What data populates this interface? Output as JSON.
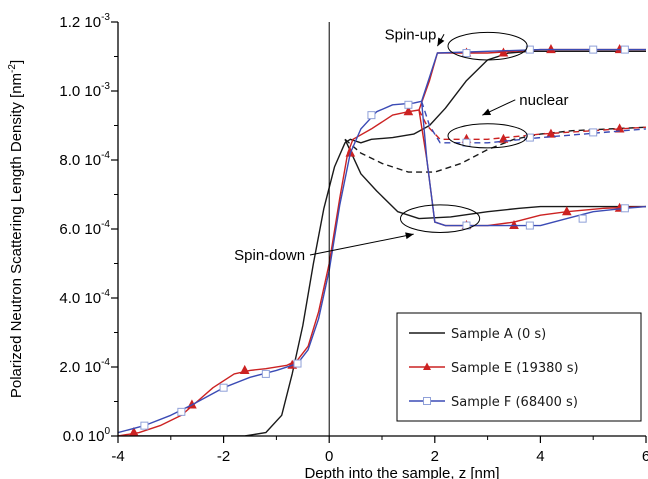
{
  "chart_data": {
    "type": "line",
    "title": "",
    "xlabel": "Depth into the sample, z [nm]",
    "ylabel_main": "Polarized Neutron Scattering Length Density [nm",
    "ylabel_sup": "-2",
    "ylabel_close": "]",
    "xlim": [
      -4,
      6
    ],
    "ylim": [
      0,
      0.0012
    ],
    "grid": false,
    "legend_position": "bottom-right",
    "x_ticks": [
      -4,
      -2,
      0,
      2,
      4,
      6
    ],
    "x_tick_labels": [
      "-4",
      "-2",
      "0",
      "2",
      "4",
      "6"
    ],
    "y_ticks": [
      0,
      0.0002,
      0.0004,
      0.0006,
      0.0008,
      0.001,
      0.0012
    ],
    "y_tick_labels": [
      {
        "mant": "0.0 10",
        "exp": "0"
      },
      {
        "mant": "2.0 10",
        "exp": "-4"
      },
      {
        "mant": "4.0 10",
        "exp": "-4"
      },
      {
        "mant": "6.0 10",
        "exp": "-4"
      },
      {
        "mant": "8.0 10",
        "exp": "-4"
      },
      {
        "mant": "1.0 10",
        "exp": "-3"
      },
      {
        "mant": "1.2 10",
        "exp": "-3"
      }
    ],
    "series": [
      {
        "name": "Sample A (0 s)",
        "color": "#1a1a1a",
        "marker": "none",
        "profiles": [
          {
            "style": "solid",
            "points": [
              [
                -4,
                0
              ],
              [
                -1.6,
                0
              ],
              [
                -1.2,
                1e-05
              ],
              [
                -0.9,
                6e-05
              ],
              [
                -0.7,
                0.00018
              ],
              [
                -0.5,
                0.00032
              ],
              [
                -0.3,
                0.0005
              ],
              [
                -0.1,
                0.00066
              ],
              [
                0.1,
                0.00078
              ],
              [
                0.3,
                0.00085
              ],
              [
                0.4,
                0.00086
              ],
              [
                0.6,
                0.00085
              ],
              [
                0.8,
                0.00086
              ],
              [
                1.2,
                0.000865
              ],
              [
                1.6,
                0.000875
              ],
              [
                1.9,
                0.0009
              ],
              [
                2.2,
                0.00095
              ],
              [
                2.6,
                0.00103
              ],
              [
                3.0,
                0.00109
              ],
              [
                3.4,
                0.00111
              ],
              [
                3.8,
                0.001115
              ],
              [
                6,
                0.001115
              ]
            ]
          },
          {
            "style": "dash",
            "points": [
              [
                0.3,
                0.00086
              ],
              [
                0.6,
                0.00082
              ],
              [
                1.0,
                0.00079
              ],
              [
                1.5,
                0.000765
              ],
              [
                2.0,
                0.000765
              ],
              [
                2.5,
                0.00079
              ],
              [
                3.0,
                0.00083
              ],
              [
                3.5,
                0.00086
              ],
              [
                4.0,
                0.000875
              ],
              [
                4.6,
                0.000885
              ],
              [
                6,
                0.000895
              ]
            ]
          },
          {
            "style": "solid",
            "points": [
              [
                0.3,
                0.00086
              ],
              [
                0.6,
                0.00076
              ],
              [
                0.9,
                0.00071
              ],
              [
                1.3,
                0.00065
              ],
              [
                1.7,
                0.00063
              ],
              [
                2.3,
                0.000635
              ],
              [
                3.0,
                0.00065
              ],
              [
                3.6,
                0.00066
              ],
              [
                4.0,
                0.000665
              ],
              [
                6,
                0.000665
              ]
            ]
          }
        ]
      },
      {
        "name": "Sample E (19380 s)",
        "color": "#cc2222",
        "marker": "triangle",
        "profiles": [
          {
            "style": "solid",
            "points": [
              [
                -4,
                0
              ],
              [
                -3.6,
                1e-05
              ],
              [
                -3.2,
                3e-05
              ],
              [
                -2.8,
                6e-05
              ],
              [
                -2.5,
                0.0001
              ],
              [
                -2.2,
                0.00014
              ],
              [
                -1.8,
                0.00018
              ],
              [
                -1.5,
                0.00019
              ],
              [
                -1.2,
                0.000195
              ],
              [
                -0.8,
                0.000205
              ],
              [
                -0.6,
                0.00022
              ],
              [
                -0.4,
                0.00026
              ],
              [
                -0.2,
                0.00036
              ],
              [
                0,
                0.0005
              ],
              [
                0.2,
                0.00069
              ],
              [
                0.35,
                0.00082
              ],
              [
                0.45,
                0.00086
              ],
              [
                0.8,
                0.00089
              ],
              [
                1.2,
                0.00093
              ],
              [
                1.5,
                0.00094
              ],
              [
                1.7,
                0.000945
              ],
              [
                1.9,
                0.00103
              ],
              [
                2.05,
                0.00111
              ],
              [
                3.0,
                0.00111
              ],
              [
                4.0,
                0.00112
              ],
              [
                6,
                0.00112
              ]
            ]
          },
          {
            "style": "dash",
            "points": [
              [
                1.7,
                0.000945
              ],
              [
                1.85,
                0.0009
              ],
              [
                2.1,
                0.00086
              ],
              [
                3.0,
                0.00086
              ],
              [
                4.0,
                0.000875
              ],
              [
                6,
                0.000895
              ]
            ]
          },
          {
            "style": "solid",
            "points": [
              [
                1.7,
                0.000945
              ],
              [
                1.85,
                0.0008
              ],
              [
                2.0,
                0.00062
              ],
              [
                2.2,
                0.00061
              ],
              [
                3.0,
                0.00061
              ],
              [
                3.5,
                0.00062
              ],
              [
                4.0,
                0.00064
              ],
              [
                4.5,
                0.00065
              ],
              [
                5.2,
                0.00066
              ],
              [
                6,
                0.000665
              ]
            ]
          }
        ],
        "markers": [
          [
            -3.7,
            1e-05
          ],
          [
            -2.6,
            9e-05
          ],
          [
            -1.6,
            0.00019
          ],
          [
            -0.7,
            0.000205
          ],
          [
            0.4,
            0.00082
          ],
          [
            1.5,
            0.00094
          ],
          [
            2.6,
            0.00111
          ],
          [
            3.3,
            0.00111
          ],
          [
            4.2,
            0.00112
          ],
          [
            5.5,
            0.00112
          ],
          [
            2.6,
            0.00086
          ],
          [
            3.3,
            0.00086
          ],
          [
            4.2,
            0.000875
          ],
          [
            5.5,
            0.00089
          ],
          [
            2.6,
            0.00061
          ],
          [
            3.5,
            0.00061
          ],
          [
            4.5,
            0.00065
          ],
          [
            5.5,
            0.00066
          ]
        ]
      },
      {
        "name": "Sample F (68400 s)",
        "color": "#3b4bb5",
        "marker": "square-open",
        "profiles": [
          {
            "style": "solid",
            "points": [
              [
                -4,
                1e-05
              ],
              [
                -3.5,
                3e-05
              ],
              [
                -3.0,
                6e-05
              ],
              [
                -2.6,
                9e-05
              ],
              [
                -2.0,
                0.00014
              ],
              [
                -1.5,
                0.00017
              ],
              [
                -1.0,
                0.00019
              ],
              [
                -0.6,
                0.00021
              ],
              [
                -0.4,
                0.00025
              ],
              [
                -0.2,
                0.00034
              ],
              [
                0,
                0.00048
              ],
              [
                0.2,
                0.00067
              ],
              [
                0.4,
                0.00082
              ],
              [
                0.6,
                0.00089
              ],
              [
                0.9,
                0.00094
              ],
              [
                1.2,
                0.00096
              ],
              [
                1.6,
                0.000965
              ],
              [
                1.75,
                0.00097
              ],
              [
                1.9,
                0.00104
              ],
              [
                2.05,
                0.00111
              ],
              [
                3.0,
                0.001115
              ],
              [
                4.0,
                0.00112
              ],
              [
                6,
                0.00112
              ]
            ]
          },
          {
            "style": "dash",
            "points": [
              [
                1.75,
                0.00097
              ],
              [
                1.9,
                0.0009
              ],
              [
                2.1,
                0.00085
              ],
              [
                3.0,
                0.00085
              ],
              [
                4.0,
                0.000865
              ],
              [
                6,
                0.00089
              ]
            ]
          },
          {
            "style": "solid",
            "points": [
              [
                1.75,
                0.00097
              ],
              [
                1.85,
                0.0008
              ],
              [
                2.0,
                0.00062
              ],
              [
                2.2,
                0.00061
              ],
              [
                3.0,
                0.00061
              ],
              [
                4.0,
                0.00061
              ],
              [
                4.5,
                0.00063
              ],
              [
                5.0,
                0.00065
              ],
              [
                5.6,
                0.00066
              ],
              [
                6,
                0.000665
              ]
            ]
          }
        ],
        "markers": [
          [
            -3.5,
            3e-05
          ],
          [
            -2.8,
            7e-05
          ],
          [
            -2.0,
            0.00014
          ],
          [
            -1.2,
            0.00018
          ],
          [
            -0.6,
            0.00021
          ],
          [
            0.8,
            0.00093
          ],
          [
            1.5,
            0.00096
          ],
          [
            2.6,
            0.00111
          ],
          [
            3.8,
            0.00112
          ],
          [
            5.0,
            0.00112
          ],
          [
            5.6,
            0.00112
          ],
          [
            2.6,
            0.00085
          ],
          [
            3.8,
            0.000865
          ],
          [
            5.0,
            0.00088
          ],
          [
            2.6,
            0.00061
          ],
          [
            3.8,
            0.00061
          ],
          [
            4.8,
            0.00063
          ],
          [
            5.6,
            0.00066
          ]
        ]
      }
    ],
    "annotations": [
      {
        "text": "Spin-up",
        "label_at": [
          1.05,
          0.00115
        ],
        "arrow_tip": [
          2.05,
          0.00113
        ],
        "ellipse": [
          3.0,
          0.00113,
          0.75,
          4e-05
        ]
      },
      {
        "text": "nuclear",
        "label_at": [
          3.6,
          0.00096
        ],
        "arrow_tip": [
          2.9,
          0.00093
        ],
        "ellipse": [
          3.0,
          0.00087,
          0.75,
          3.5e-05
        ]
      },
      {
        "text": "Spin-down",
        "label_at": [
          -1.8,
          0.00051
        ],
        "arrow_tip": [
          1.6,
          0.000585
        ],
        "ellipse": [
          2.1,
          0.00063,
          0.75,
          4e-05
        ]
      }
    ]
  }
}
